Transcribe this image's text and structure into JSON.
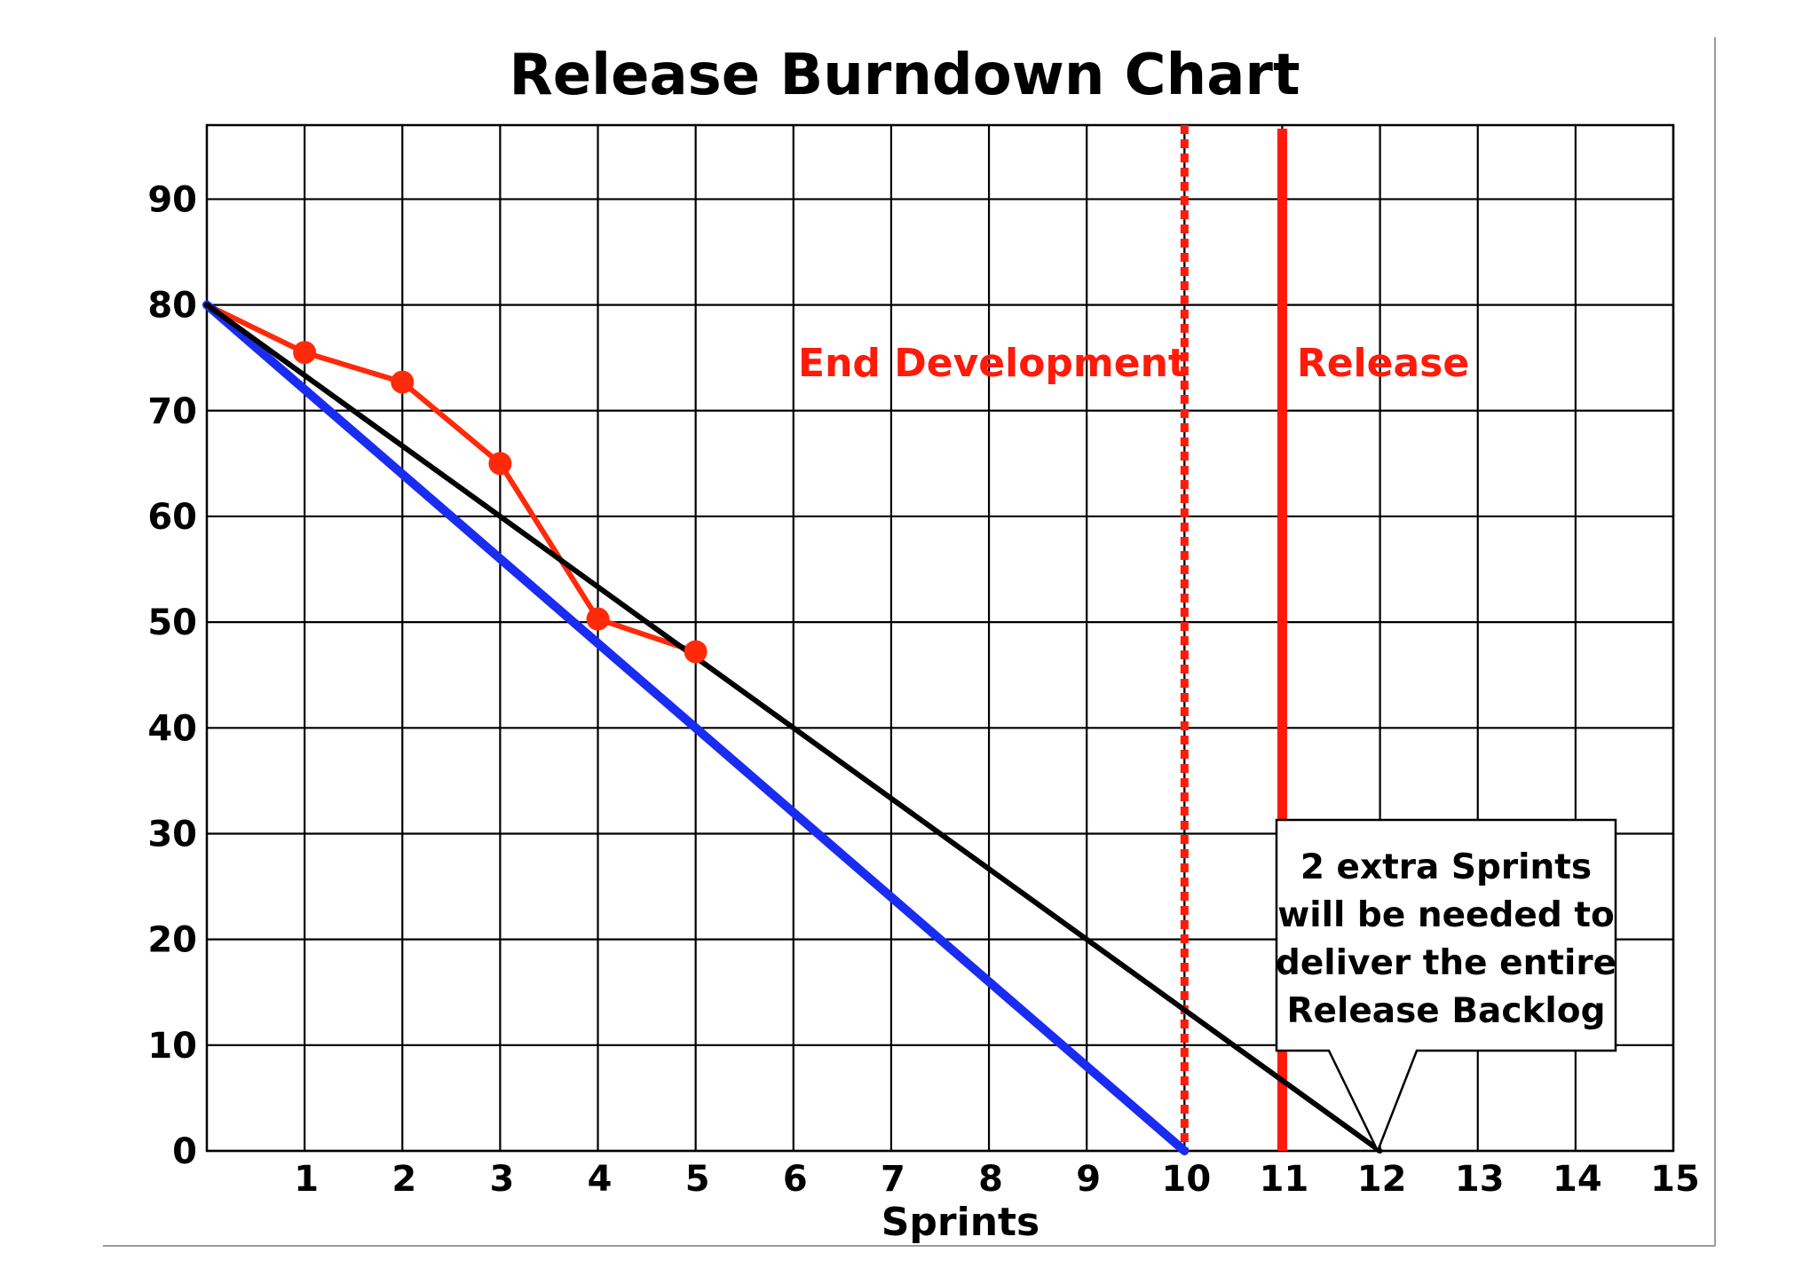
{
  "chart_data": {
    "type": "line",
    "title": "Release Burndown Chart",
    "xlabel": "Sprints",
    "ylabel": "",
    "xlim": [
      0,
      15
    ],
    "ylim": [
      0,
      97
    ],
    "x_ticks": [
      1,
      2,
      3,
      4,
      5,
      6,
      7,
      8,
      9,
      10,
      11,
      12,
      13,
      14,
      15
    ],
    "y_ticks": [
      0,
      10,
      20,
      30,
      40,
      50,
      60,
      70,
      80,
      90
    ],
    "grid": true,
    "series": [
      {
        "color": "#ff2a0a",
        "markers": true,
        "x": [
          0,
          1,
          2,
          3,
          4,
          5
        ],
        "y": [
          80,
          75.5,
          72.7,
          65,
          50.3,
          47.2
        ]
      },
      {
        "color": "#1a2cf0",
        "markers": false,
        "x": [
          0,
          10
        ],
        "y": [
          80,
          0
        ]
      },
      {
        "color": "#000000",
        "markers": false,
        "x": [
          0,
          12
        ],
        "y": [
          80,
          0
        ]
      }
    ],
    "vertical_lines": [
      {
        "x": 10,
        "label": "End Development",
        "style": "dashed",
        "color": "#ff1a0a"
      },
      {
        "x": 11,
        "label": "Release",
        "style": "solid",
        "color": "#ff1a0a"
      }
    ],
    "callout": {
      "lines": [
        "2 extra Sprints",
        "will be needed to",
        "deliver the entire",
        "Release Backlog"
      ],
      "points_to": {
        "x": 12,
        "y": 0
      }
    }
  }
}
